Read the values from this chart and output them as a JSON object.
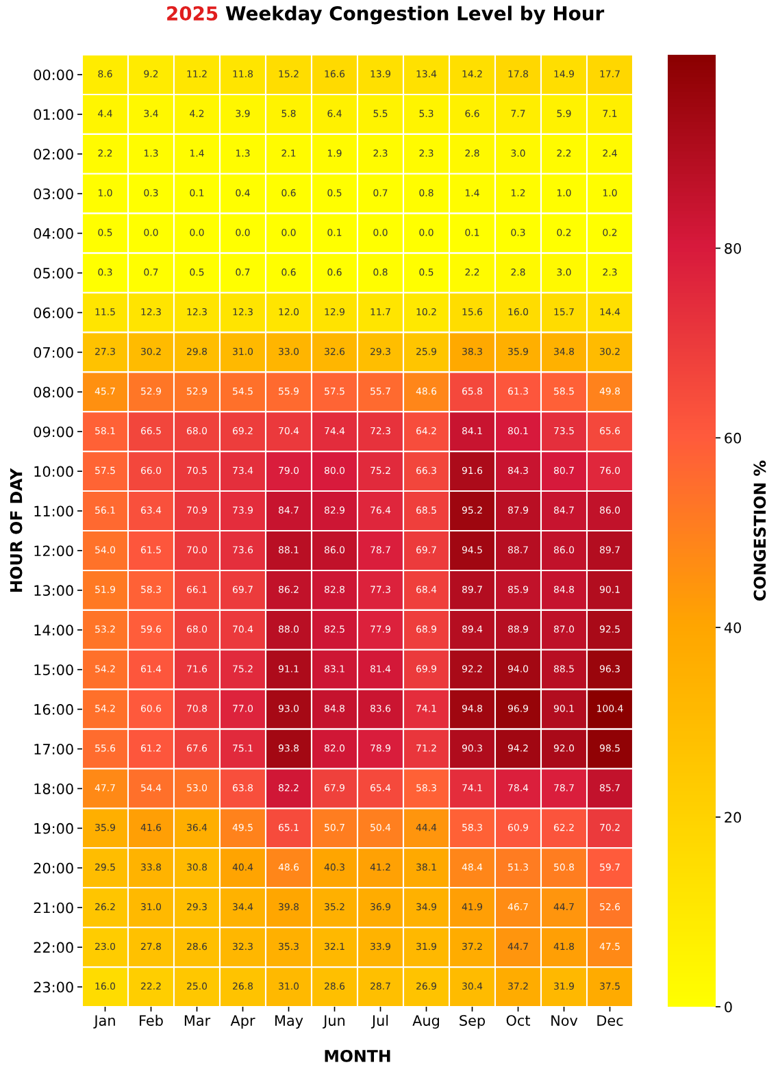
{
  "chart_data": {
    "type": "heatmap",
    "title": "2025 Weekday Congestion Level by Hour",
    "xlabel": "MONTH",
    "ylabel": "HOUR OF DAY",
    "clabel": "CONGESTION %",
    "categories": [
      "Jan",
      "Feb",
      "Mar",
      "Apr",
      "May",
      "Jun",
      "Jul",
      "Aug",
      "Sep",
      "Oct",
      "Nov",
      "Dec"
    ],
    "y_categories": [
      "00:00",
      "01:00",
      "02:00",
      "03:00",
      "04:00",
      "05:00",
      "06:00",
      "07:00",
      "08:00",
      "09:00",
      "10:00",
      "11:00",
      "12:00",
      "13:00",
      "14:00",
      "15:00",
      "16:00",
      "17:00",
      "18:00",
      "19:00",
      "20:00",
      "21:00",
      "22:00",
      "23:00"
    ],
    "cells": [
      [
        8.6,
        9.2,
        11.2,
        11.8,
        15.2,
        16.6,
        13.9,
        13.4,
        14.2,
        17.8,
        14.9,
        17.7
      ],
      [
        4.4,
        3.4,
        4.2,
        3.9,
        5.8,
        6.4,
        5.5,
        5.3,
        6.6,
        7.7,
        5.9,
        7.1
      ],
      [
        2.2,
        1.3,
        1.4,
        1.3,
        2.1,
        1.9,
        2.3,
        2.3,
        2.8,
        3.0,
        2.2,
        2.4
      ],
      [
        1.0,
        0.3,
        0.1,
        0.4,
        0.6,
        0.5,
        0.7,
        0.8,
        1.4,
        1.2,
        1.0,
        1.0
      ],
      [
        0.5,
        0.0,
        0.0,
        0.0,
        0.0,
        0.1,
        0.0,
        0.0,
        0.1,
        0.3,
        0.2,
        0.2
      ],
      [
        0.3,
        0.7,
        0.5,
        0.7,
        0.6,
        0.6,
        0.8,
        0.5,
        2.2,
        2.8,
        3.0,
        2.3
      ],
      [
        11.5,
        12.3,
        12.3,
        12.3,
        12.0,
        12.9,
        11.7,
        10.2,
        15.6,
        16.0,
        15.7,
        14.4
      ],
      [
        27.3,
        30.2,
        29.8,
        31.0,
        33.0,
        32.6,
        29.3,
        25.9,
        38.3,
        35.9,
        34.8,
        30.2
      ],
      [
        45.7,
        52.9,
        52.9,
        54.5,
        55.9,
        57.5,
        55.7,
        48.6,
        65.8,
        61.3,
        58.5,
        49.8
      ],
      [
        58.1,
        66.5,
        68.0,
        69.2,
        70.4,
        74.4,
        72.3,
        64.2,
        84.1,
        80.1,
        73.5,
        65.6
      ],
      [
        57.5,
        66.0,
        70.5,
        73.4,
        79.0,
        80.0,
        75.2,
        66.3,
        91.6,
        84.3,
        80.7,
        76.0
      ],
      [
        56.1,
        63.4,
        70.9,
        73.9,
        84.7,
        82.9,
        76.4,
        68.5,
        95.2,
        87.9,
        84.7,
        86.0
      ],
      [
        54.0,
        61.5,
        70.0,
        73.6,
        88.1,
        86.0,
        78.7,
        69.7,
        94.5,
        88.7,
        86.0,
        89.7
      ],
      [
        51.9,
        58.3,
        66.1,
        69.7,
        86.2,
        82.8,
        77.3,
        68.4,
        89.7,
        85.9,
        84.8,
        90.1
      ],
      [
        53.2,
        59.6,
        68.0,
        70.4,
        88.0,
        82.5,
        77.9,
        68.9,
        89.4,
        88.9,
        87.0,
        92.5
      ],
      [
        54.2,
        61.4,
        71.6,
        75.2,
        91.1,
        83.1,
        81.4,
        69.9,
        92.2,
        94.0,
        88.5,
        96.3
      ],
      [
        54.2,
        60.6,
        70.8,
        77.0,
        93.0,
        84.8,
        83.6,
        74.1,
        94.8,
        96.9,
        90.1,
        100.4
      ],
      [
        55.6,
        61.2,
        67.6,
        75.1,
        93.8,
        82.0,
        78.9,
        71.2,
        90.3,
        94.2,
        92.0,
        98.5
      ],
      [
        47.7,
        54.4,
        53.0,
        63.8,
        82.2,
        67.9,
        65.4,
        58.3,
        74.1,
        78.4,
        78.7,
        85.7
      ],
      [
        35.9,
        41.6,
        36.4,
        49.5,
        65.1,
        50.7,
        50.4,
        44.4,
        58.3,
        60.9,
        62.2,
        70.2
      ],
      [
        29.5,
        33.8,
        30.8,
        40.4,
        48.6,
        40.3,
        41.2,
        38.1,
        48.4,
        51.3,
        50.8,
        59.7
      ],
      [
        26.2,
        31.0,
        29.3,
        34.4,
        39.8,
        35.2,
        36.9,
        34.9,
        41.9,
        46.7,
        44.7,
        52.6
      ],
      [
        23.0,
        27.8,
        28.6,
        32.3,
        35.3,
        32.1,
        33.9,
        31.9,
        37.2,
        44.7,
        41.8,
        47.5
      ],
      [
        16.0,
        22.2,
        25.0,
        26.8,
        31.0,
        28.6,
        28.7,
        26.9,
        30.4,
        37.2,
        31.9,
        37.5
      ]
    ],
    "cell_labels": [
      [
        "8.6",
        "9.2",
        "11.2",
        "11.8",
        "15.2",
        "16.6",
        "13.9",
        "13.4",
        "14.2",
        "17.8",
        "14.9",
        "17.7"
      ],
      [
        "4.4",
        "3.4",
        "4.2",
        "3.9",
        "5.8",
        "6.4",
        "5.5",
        "5.3",
        "6.6",
        "7.7",
        "5.9",
        "7.1"
      ],
      [
        "2.2",
        "1.3",
        "1.4",
        "1.3",
        "2.1",
        "1.9",
        "2.3",
        "2.3",
        "2.8",
        "3.0",
        "2.2",
        "2.4"
      ],
      [
        "1.0",
        "0.3",
        "0.1",
        "0.4",
        "0.6",
        "0.5",
        "0.7",
        "0.8",
        "1.4",
        "1.2",
        "1.0",
        "1.0"
      ],
      [
        "0.5",
        "0.0",
        "0.0",
        "0.0",
        "0.0",
        "0.1",
        "0.0",
        "0.0",
        "0.1",
        "0.3",
        "0.2",
        "0.2"
      ],
      [
        "0.3",
        "0.7",
        "0.5",
        "0.7",
        "0.6",
        "0.6",
        "0.8",
        "0.5",
        "2.2",
        "2.8",
        "3.0",
        "2.3"
      ],
      [
        "11.5",
        "12.3",
        "12.3",
        "12.3",
        "12.0",
        "12.9",
        "11.7",
        "10.2",
        "15.6",
        "16.0",
        "15.7",
        "14.4"
      ],
      [
        "27.3",
        "30.2",
        "29.8",
        "31.0",
        "33.0",
        "32.6",
        "29.3",
        "25.9",
        "38.3",
        "35.9",
        "34.8",
        "30.2"
      ],
      [
        "45.7",
        "52.9",
        "52.9",
        "54.5",
        "55.9",
        "57.5",
        "55.7",
        "48.6",
        "65.8",
        "61.3",
        "58.5",
        "49.8"
      ],
      [
        "58.1",
        "66.5",
        "68.0",
        "69.2",
        "70.4",
        "74.4",
        "72.3",
        "64.2",
        "84.1",
        "80.1",
        "73.5",
        "65.6"
      ],
      [
        "57.5",
        "66.0",
        "70.5",
        "73.4",
        "79.0",
        "80.0",
        "75.2",
        "66.3",
        "91.6",
        "84.3",
        "80.7",
        "76.0"
      ],
      [
        "56.1",
        "63.4",
        "70.9",
        "73.9",
        "84.7",
        "82.9",
        "76.4",
        "68.5",
        "95.2",
        "87.9",
        "84.7",
        "86.0"
      ],
      [
        "54.0",
        "61.5",
        "70.0",
        "73.6",
        "88.1",
        "86.0",
        "78.7",
        "69.7",
        "94.5",
        "88.7",
        "86.0",
        "89.7"
      ],
      [
        "51.9",
        "58.3",
        "66.1",
        "69.7",
        "86.2",
        "82.8",
        "77.3",
        "68.4",
        "89.7",
        "85.9",
        "84.8",
        "90.1"
      ],
      [
        "53.2",
        "59.6",
        "68.0",
        "70.4",
        "88.0",
        "82.5",
        "77.9",
        "68.9",
        "89.4",
        "88.9",
        "87.0",
        "92.5"
      ],
      [
        "54.2",
        "61.4",
        "71.6",
        "75.2",
        "91.1",
        "83.1",
        "81.4",
        "69.9",
        "92.2",
        "94.0",
        "88.5",
        "96.3"
      ],
      [
        "54.2",
        "60.6",
        "70.8",
        "77.0",
        "93.0",
        "84.8",
        "83.6",
        "74.1",
        "94.8",
        "96.9",
        "90.1",
        "100.4"
      ],
      [
        "55.6",
        "61.2",
        "67.6",
        "75.1",
        "93.8",
        "82.0",
        "78.9",
        "71.2",
        "90.3",
        "94.2",
        "92.0",
        "98.5"
      ],
      [
        "47.7",
        "54.4",
        "53.0",
        "63.8",
        "82.2",
        "67.9",
        "65.4",
        "58.3",
        "74.1",
        "78.4",
        "78.7",
        "85.7"
      ],
      [
        "35.9",
        "41.6",
        "36.4",
        "49.5",
        "65.1",
        "50.7",
        "50.4",
        "44.4",
        "58.3",
        "60.9",
        "62.2",
        "70.2"
      ],
      [
        "29.5",
        "33.8",
        "30.8",
        "40.4",
        "48.6",
        "40.3",
        "41.2",
        "38.1",
        "48.4",
        "51.3",
        "50.8",
        "59.7"
      ],
      [
        "26.2",
        "31.0",
        "29.3",
        "34.4",
        "39.8",
        "35.2",
        "36.9",
        "34.9",
        "41.9",
        "46.7",
        "44.7",
        "52.6"
      ],
      [
        "23.0",
        "27.8",
        "28.6",
        "32.3",
        "35.3",
        "32.1",
        "33.9",
        "31.9",
        "37.2",
        "44.7",
        "41.8",
        "47.5"
      ],
      [
        "16.0",
        "22.2",
        "25.0",
        "26.8",
        "31.0",
        "28.6",
        "28.7",
        "26.9",
        "30.4",
        "37.2",
        "31.9",
        "37.5"
      ]
    ],
    "clim": [
      0,
      100.4
    ],
    "cticks": [
      0,
      20,
      40,
      60,
      80
    ],
    "data_labels": true,
    "grid": false
  }
}
